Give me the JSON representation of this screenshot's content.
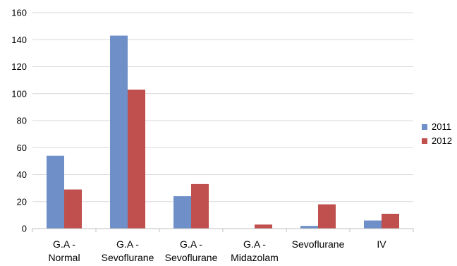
{
  "chart_data": {
    "type": "bar",
    "categories": [
      [
        "G.A -",
        "Normal"
      ],
      [
        "G.A -",
        "Sevoflurane"
      ],
      [
        "G.A -",
        "Sevoflurane"
      ],
      [
        "G.A -",
        "Midazolam"
      ],
      [
        "Sevoflurane"
      ],
      [
        "IV"
      ]
    ],
    "series": [
      {
        "name": "2011",
        "color": "#6f8fc8",
        "values": [
          54,
          143,
          24,
          0,
          2,
          6
        ]
      },
      {
        "name": "2012",
        "color": "#c0504d",
        "values": [
          29,
          103,
          33,
          3,
          18,
          11
        ]
      }
    ],
    "ylim": [
      0,
      160
    ],
    "yticks": [
      "0",
      "20",
      "40",
      "60",
      "80",
      "100",
      "120",
      "140",
      "160"
    ],
    "grid": true,
    "legend": "right"
  }
}
